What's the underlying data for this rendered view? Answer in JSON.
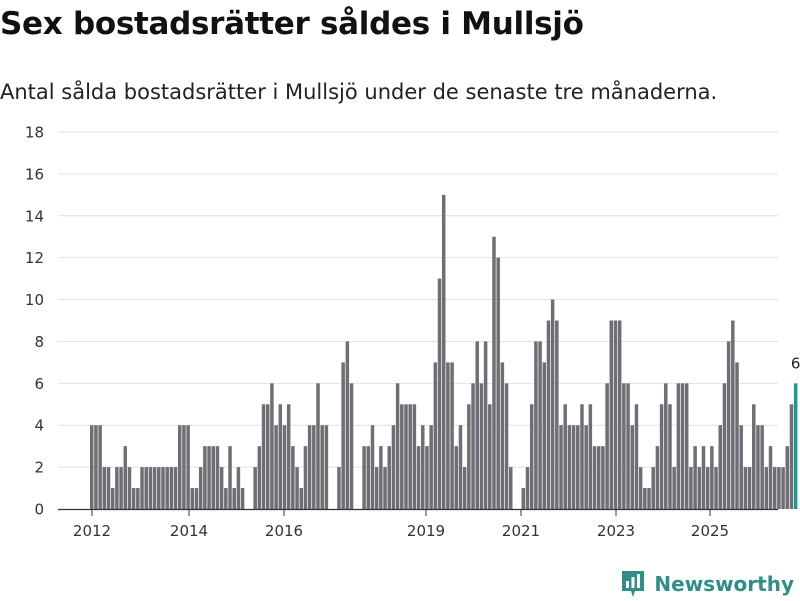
{
  "chart_data": {
    "type": "bar",
    "title": "Sex bostadsrätter såldes i Mullsjö",
    "subtitle": "Antal sålda bostadsrätter i Mullsjö under de senaste tre månaderna.",
    "xlabel": "",
    "ylabel": "",
    "ylim": [
      0,
      18
    ],
    "yticks": [
      0,
      2,
      4,
      6,
      8,
      10,
      12,
      14,
      16,
      18
    ],
    "xticks": [
      "2012",
      "2014",
      "2016",
      "2019",
      "2021",
      "2023",
      "2025"
    ],
    "grid": true,
    "series": [
      {
        "name": "Sålda bostadsrätter",
        "color": "#6f6e75",
        "values": [
          4,
          4,
          4,
          2,
          2,
          1,
          2,
          2,
          3,
          2,
          1,
          1,
          2,
          2,
          2,
          2,
          2,
          2,
          2,
          2,
          2,
          4,
          4,
          4,
          1,
          1,
          2,
          3,
          3,
          3,
          3,
          2,
          1,
          3,
          1,
          2,
          1,
          0,
          0,
          2,
          3,
          5,
          5,
          6,
          4,
          5,
          4,
          5,
          3,
          2,
          1,
          3,
          4,
          4,
          6,
          4,
          4,
          0,
          0,
          2,
          7,
          8,
          6,
          0,
          0,
          3,
          3,
          4,
          2,
          3,
          2,
          3,
          4,
          6,
          5,
          5,
          5,
          5,
          3,
          4,
          3,
          4,
          7,
          11,
          15,
          7,
          7,
          3,
          4,
          2,
          5,
          6,
          8,
          6,
          8,
          5,
          13,
          12,
          7,
          6,
          2,
          0,
          0,
          1,
          2,
          5,
          8,
          8,
          7,
          9,
          10,
          9,
          4,
          5,
          4,
          4,
          4,
          5,
          4,
          5,
          3,
          3,
          3,
          6,
          9,
          9,
          9,
          6,
          6,
          4,
          5,
          2,
          1,
          1,
          2,
          3,
          5,
          6,
          5,
          2,
          6,
          6,
          6,
          2,
          3,
          2,
          3,
          2,
          3,
          2,
          4,
          6,
          8,
          9,
          7,
          4,
          2,
          2,
          5,
          4,
          4,
          2,
          3,
          2,
          2,
          2,
          3,
          5,
          6
        ]
      }
    ],
    "highlight": {
      "index": "last",
      "color": "#1a9a92",
      "label": "6"
    }
  },
  "branding": {
    "text": "Newsworthy",
    "icon": "newsworthy-logo-icon",
    "color": "#2f8f87"
  }
}
